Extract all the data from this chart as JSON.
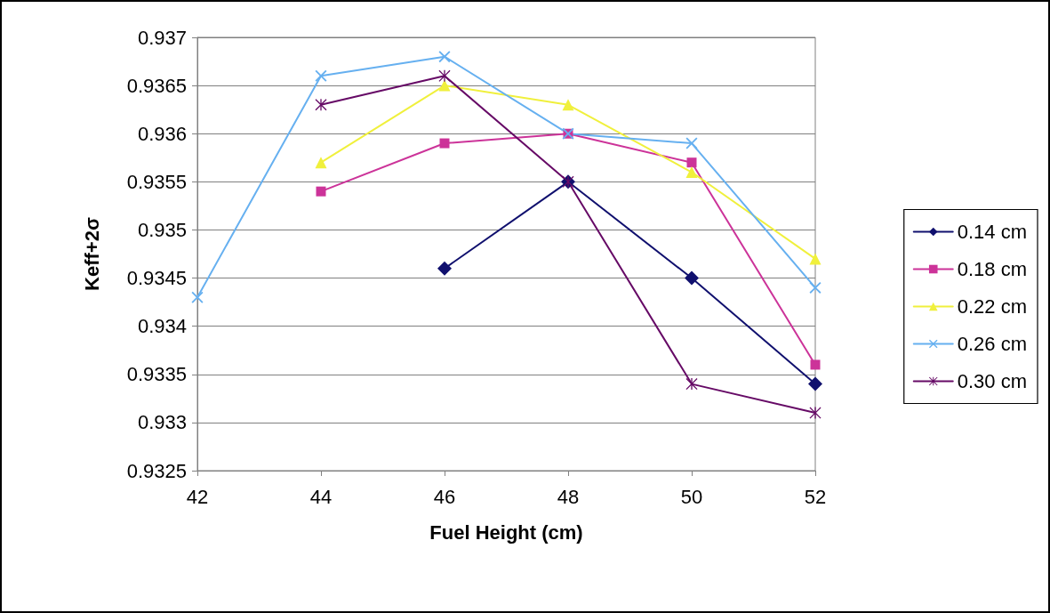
{
  "chart_data": {
    "type": "line",
    "xlabel": "Fuel Height (cm)",
    "ylabel": "Keff+2σ",
    "xlim": [
      42,
      52
    ],
    "xticks": [
      42,
      44,
      46,
      48,
      50,
      52
    ],
    "ylim": [
      0.9325,
      0.937
    ],
    "yticks": [
      0.9325,
      0.933,
      0.9335,
      0.934,
      0.9345,
      0.935,
      0.9355,
      0.936,
      0.9365,
      0.937
    ],
    "grid": "y",
    "legend": "right",
    "line_style": "solid",
    "series": [
      {
        "name": "0.14 cm",
        "color": "#10106e",
        "marker": "diamond",
        "x": [
          46,
          48,
          50,
          52
        ],
        "values": [
          0.9346,
          0.9355,
          0.9345,
          0.9334
        ]
      },
      {
        "name": "0.18 cm",
        "color": "#cc3399",
        "marker": "square",
        "x": [
          44,
          46,
          48,
          50,
          52
        ],
        "values": [
          0.9354,
          0.9359,
          0.936,
          0.9357,
          0.9336
        ]
      },
      {
        "name": "0.22 cm",
        "color": "#f0f03c",
        "marker": "triangle",
        "x": [
          44,
          46,
          48,
          50,
          52
        ],
        "values": [
          0.9357,
          0.9365,
          0.9363,
          0.9356,
          0.9347
        ]
      },
      {
        "name": "0.26 cm",
        "color": "#66b0f0",
        "marker": "cross",
        "x": [
          42,
          44,
          46,
          48,
          50,
          52
        ],
        "values": [
          0.9343,
          0.9366,
          0.9368,
          0.936,
          0.9359,
          0.9344
        ]
      },
      {
        "name": "0.30 cm",
        "color": "#660a66",
        "marker": "star",
        "x": [
          44,
          46,
          48,
          50,
          52
        ],
        "values": [
          0.9363,
          0.9366,
          0.9355,
          0.9334,
          0.9331
        ]
      }
    ]
  }
}
